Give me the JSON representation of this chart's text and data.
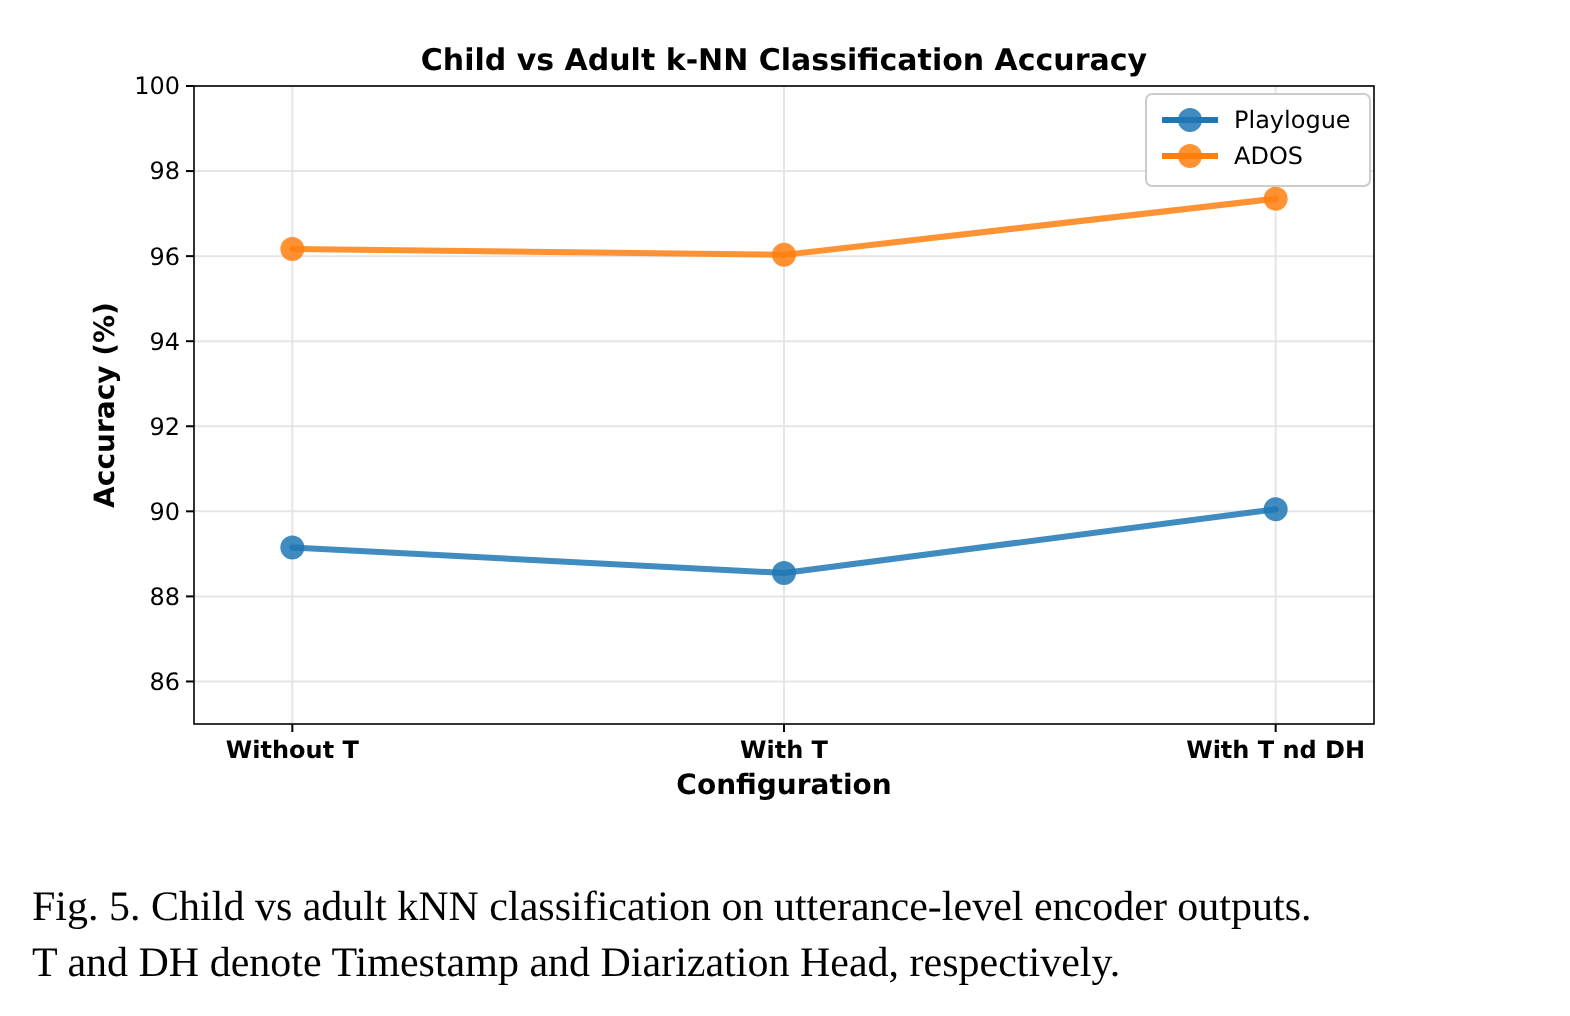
{
  "chart_data": {
    "type": "line",
    "title": "Child vs Adult k-NN Classification Accuracy",
    "xlabel": "Configuration",
    "ylabel": "Accuracy (%)",
    "categories": [
      "Without T",
      "With T",
      "With T nd DH"
    ],
    "series": [
      {
        "name": "Playlogue",
        "color": "#1f77b4",
        "values": [
          89.15,
          88.55,
          90.05
        ]
      },
      {
        "name": "ADOS",
        "color": "#ff7f0e",
        "values": [
          96.17,
          96.03,
          97.35
        ]
      }
    ],
    "ylim": [
      85,
      100
    ],
    "yticks": [
      86,
      88,
      90,
      92,
      94,
      96,
      98,
      100
    ],
    "grid": true,
    "legend": "top right",
    "marker": "circle",
    "line_style": "solid",
    "annotations": [
      "Fig. 5.  Child vs adult kNN classification on utterance-level encoder outputs. T and DH denote Timestamp and Diarization Head, respectively."
    ]
  }
}
